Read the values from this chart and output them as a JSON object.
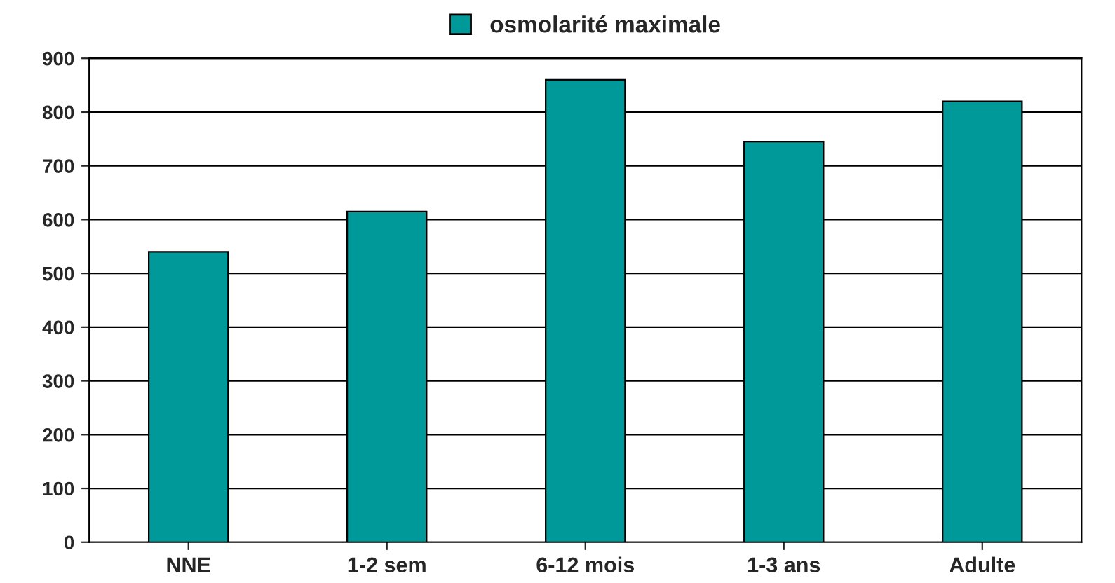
{
  "chart_data": {
    "type": "bar",
    "categories": [
      "NNE",
      "1-2 sem",
      "6-12 mois",
      "1-3 ans",
      "Adulte"
    ],
    "series": [
      {
        "name": "osmolarité maximale",
        "color": "#009999",
        "values": [
          540,
          615,
          860,
          745,
          820
        ]
      }
    ],
    "ylim": [
      0,
      900
    ],
    "yticks": [
      0,
      100,
      200,
      300,
      400,
      500,
      600,
      700,
      800,
      900
    ],
    "grid": "y",
    "legend": "top"
  }
}
